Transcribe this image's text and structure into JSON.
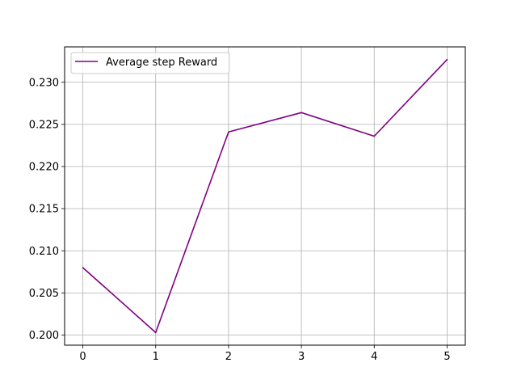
{
  "chart_data": {
    "type": "line",
    "x": [
      0,
      1,
      2,
      3,
      4,
      5
    ],
    "series": [
      {
        "name": "Average step Reward",
        "color": "#800080",
        "values": [
          0.208,
          0.2003,
          0.2241,
          0.2264,
          0.2236,
          0.2327
        ]
      }
    ],
    "xlim": [
      -0.25,
      5.25
    ],
    "ylim": [
      0.1988,
      0.2342
    ],
    "x_ticks": [
      0,
      1,
      2,
      3,
      4,
      5
    ],
    "x_tick_labels": [
      "0",
      "1",
      "2",
      "3",
      "4",
      "5"
    ],
    "y_ticks": [
      0.2,
      0.205,
      0.21,
      0.215,
      0.22,
      0.225,
      0.23
    ],
    "y_tick_labels": [
      "0.200",
      "0.205",
      "0.210",
      "0.215",
      "0.220",
      "0.225",
      "0.230"
    ],
    "grid": true,
    "grid_color": "#b0b0b0",
    "legend_position": "upper-left",
    "title": "",
    "xlabel": "",
    "ylabel": ""
  }
}
